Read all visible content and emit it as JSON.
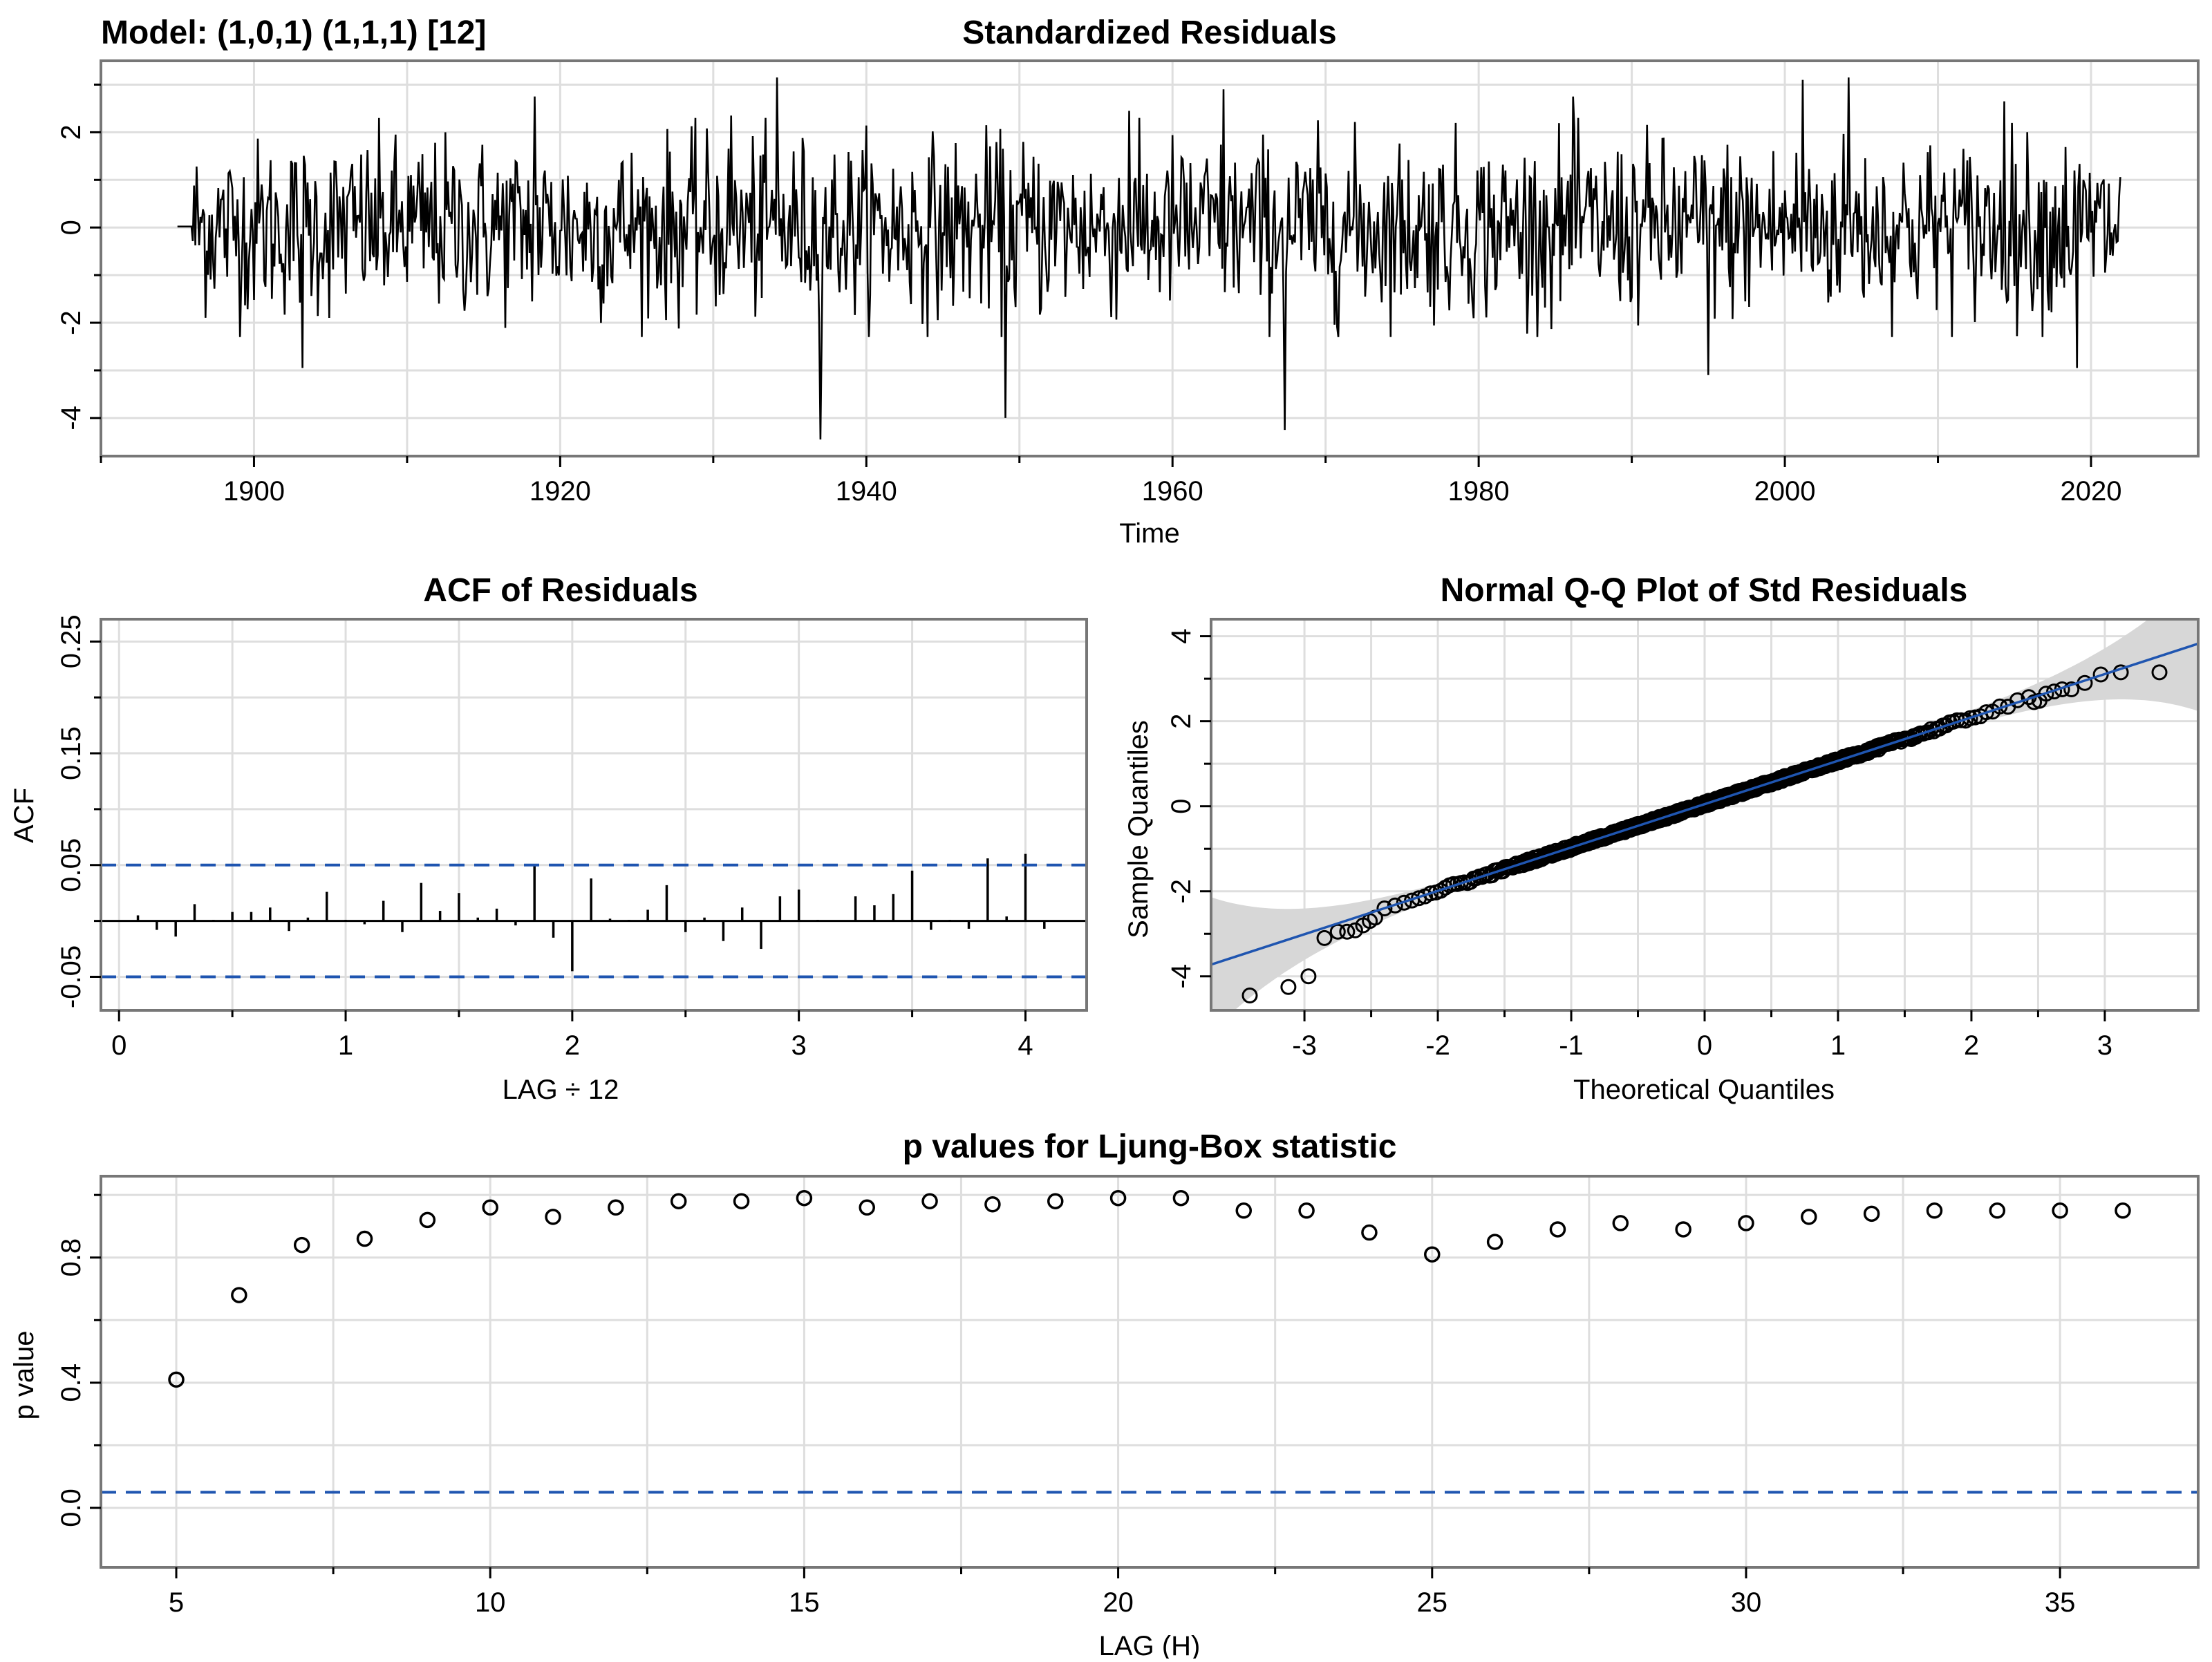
{
  "model_label": "Model: (1,0,1) (1,1,1) [12]",
  "colors": {
    "series": "#000000",
    "grid": "#dedede",
    "frame": "#777777",
    "ref_line": "#1f55b0",
    "band": "#d7d7d7",
    "background": "#ffffff"
  },
  "chart_data": [
    {
      "type": "line",
      "title": "Standardized Residuals",
      "xlabel": "Time",
      "ylabel": "",
      "xlim": [
        1890,
        2027
      ],
      "ylim": [
        -4.8,
        3.5
      ],
      "x_ticks": [
        1900,
        1920,
        1940,
        1960,
        1980,
        2000,
        2020
      ],
      "y_ticks": [
        -4,
        -2,
        0,
        2
      ],
      "grid": true,
      "series": [
        {
          "start": 1895.0,
          "end": 2022.0,
          "n": 1524,
          "spikes": [
            {
              "x": 1903.2,
              "y": -2.95
            },
            {
              "x": 1918.3,
              "y": 2.75
            },
            {
              "x": 1931.2,
              "y": 2.35
            },
            {
              "x": 1934.2,
              "y": 3.15
            },
            {
              "x": 1937.0,
              "y": -4.45
            },
            {
              "x": 1949.1,
              "y": -4.0
            },
            {
              "x": 1957.2,
              "y": 2.45
            },
            {
              "x": 1963.3,
              "y": 2.9
            },
            {
              "x": 1967.3,
              "y": -4.25
            },
            {
              "x": 1986.2,
              "y": 2.75
            },
            {
              "x": 1995.0,
              "y": -3.1
            },
            {
              "x": 2001.2,
              "y": 3.1
            },
            {
              "x": 2004.2,
              "y": 3.15
            },
            {
              "x": 2014.3,
              "y": 2.65
            },
            {
              "x": 2019.1,
              "y": -2.95
            }
          ]
        }
      ]
    },
    {
      "type": "bar",
      "title": "ACF of Residuals",
      "xlabel": "LAG ÷ 12",
      "ylabel": "ACF",
      "xlim": [
        -0.08,
        4.27
      ],
      "ylim": [
        -0.08,
        0.27
      ],
      "x_ticks": [
        0,
        1,
        2,
        3,
        4
      ],
      "y_ticks": [
        -0.05,
        0.05,
        0.15,
        0.25
      ],
      "confidence_bounds": [
        0.05,
        -0.05
      ],
      "grid": true,
      "series": [
        {
          "lags": [
            0.0833,
            0.1667,
            0.25,
            0.3333,
            0.4167,
            0.5,
            0.5833,
            0.6667,
            0.75,
            0.8333,
            0.9167,
            1.0,
            1.0833,
            1.1667,
            1.25,
            1.3333,
            1.4167,
            1.5,
            1.5833,
            1.6667,
            1.75,
            1.8333,
            1.9167,
            2.0,
            2.0833,
            2.1667,
            2.25,
            2.3333,
            2.4167,
            2.5,
            2.5833,
            2.6667,
            2.75,
            2.8333,
            2.9167,
            3.0,
            3.0833,
            3.1667,
            3.25,
            3.3333,
            3.4167,
            3.5,
            3.5833,
            3.6667,
            3.75,
            3.8333,
            3.9167,
            4.0,
            4.0833
          ],
          "values": [
            0.005,
            -0.008,
            -0.014,
            0.015,
            0.001,
            0.008,
            0.008,
            0.012,
            -0.009,
            0.003,
            0.026,
            0.001,
            -0.003,
            0.018,
            -0.01,
            0.034,
            0.009,
            0.025,
            0.003,
            0.011,
            -0.004,
            0.05,
            -0.015,
            -0.045,
            0.038,
            0.002,
            0.001,
            0.01,
            0.032,
            -0.01,
            0.003,
            -0.018,
            0.012,
            -0.025,
            0.022,
            0.028,
            0.001,
            0.0,
            0.022,
            0.014,
            0.024,
            0.045,
            -0.008,
            0.001,
            -0.007,
            0.056,
            0.004,
            0.06,
            -0.007
          ]
        }
      ]
    },
    {
      "type": "scatter",
      "title": "Normal Q-Q Plot of Std Residuals",
      "xlabel": "Theoretical Quantiles",
      "ylabel": "Sample Quantiles",
      "xlim": [
        -3.7,
        3.7
      ],
      "ylim": [
        -4.8,
        4.4
      ],
      "x_ticks": [
        -3,
        -2,
        -1,
        0,
        1,
        2,
        3
      ],
      "y_ticks": [
        -4,
        -2,
        0,
        2,
        4
      ],
      "grid": true,
      "reference_line": {
        "intercept": 0.05,
        "slope": 1.02
      },
      "confidence_band": true,
      "series": [
        {
          "n": 1524,
          "low_tail": [
            [
              -3.41,
              -4.45
            ],
            [
              -3.12,
              -4.25
            ],
            [
              -2.97,
              -4.0
            ],
            [
              -2.85,
              -3.1
            ],
            [
              -2.75,
              -2.95
            ],
            [
              -2.68,
              -2.95
            ],
            [
              -2.62,
              -2.92
            ],
            [
              -2.56,
              -2.8
            ],
            [
              -2.51,
              -2.7
            ],
            [
              -2.47,
              -2.62
            ]
          ],
          "high_tail": [
            [
              3.41,
              3.15
            ],
            [
              3.12,
              3.15
            ],
            [
              2.97,
              3.1
            ],
            [
              2.85,
              2.9
            ],
            [
              2.75,
              2.75
            ],
            [
              2.68,
              2.75
            ],
            [
              2.62,
              2.7
            ],
            [
              2.56,
              2.65
            ],
            [
              2.51,
              2.48
            ],
            [
              2.47,
              2.45
            ]
          ]
        }
      ]
    },
    {
      "type": "scatter",
      "title": "p values for Ljung-Box statistic",
      "xlabel": "LAG (H)",
      "ylabel": "p value",
      "xlim": [
        3.8,
        37.2
      ],
      "ylim": [
        -0.19,
        1.06
      ],
      "x_ticks": [
        5,
        10,
        15,
        20,
        25,
        30,
        35
      ],
      "y_ticks": [
        0.0,
        0.4,
        0.8
      ],
      "significance_line": 0.05,
      "grid": true,
      "series": [
        {
          "x": [
            5,
            6,
            7,
            8,
            9,
            10,
            11,
            12,
            13,
            14,
            15,
            16,
            17,
            18,
            19,
            20,
            21,
            22,
            23,
            24,
            25,
            26,
            27,
            28,
            29,
            30,
            31,
            32,
            33,
            34,
            35,
            36
          ],
          "y": [
            0.41,
            0.68,
            0.84,
            0.86,
            0.92,
            0.96,
            0.93,
            0.96,
            0.98,
            0.98,
            0.99,
            0.96,
            0.98,
            0.97,
            0.98,
            0.99,
            0.99,
            0.95,
            0.95,
            0.88,
            0.81,
            0.85,
            0.89,
            0.91,
            0.89,
            0.91,
            0.93,
            0.94,
            0.95,
            0.95,
            0.95,
            0.95
          ]
        }
      ]
    }
  ]
}
